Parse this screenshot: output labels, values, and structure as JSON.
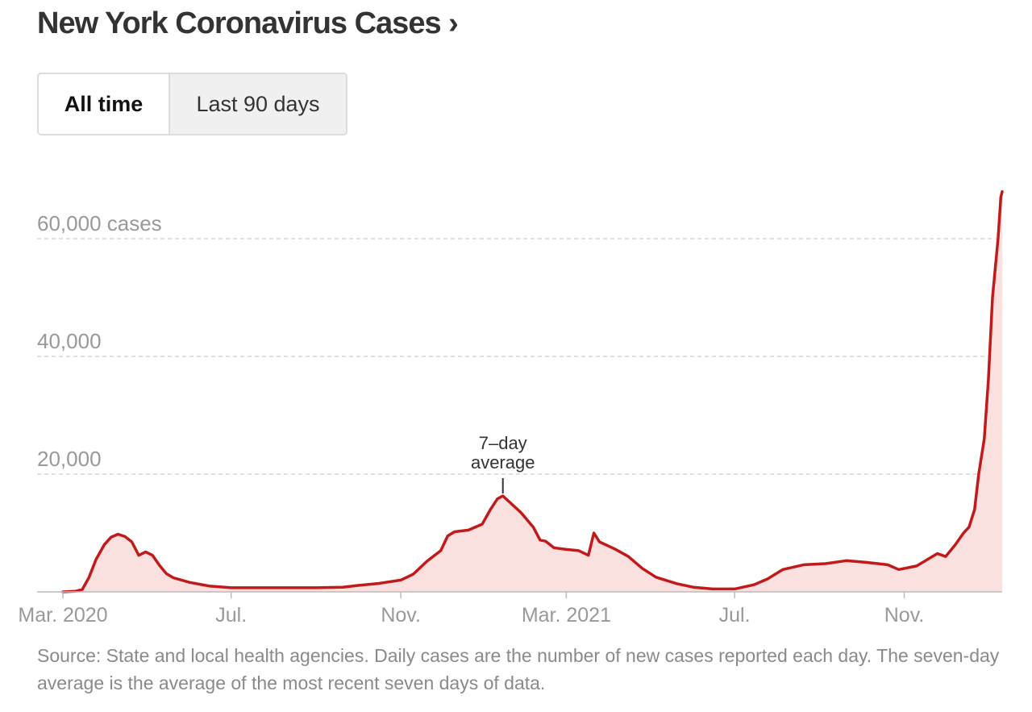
{
  "header": {
    "title": "New York Coronavirus Cases ›"
  },
  "toggle": {
    "options": [
      {
        "label": "All time",
        "selected": true
      },
      {
        "label": "Last 90 days",
        "selected": false
      }
    ]
  },
  "annotation": {
    "line1": "7–day",
    "line2": "average"
  },
  "footer": {
    "source": "Source: State and local health agencies. Daily cases are the number of new cases reported each day. The seven-day average is the average of the most recent seven days of data."
  },
  "colors": {
    "line": "#c21a1a",
    "fill": "#fbe0e0",
    "grid": "#d6d6d6",
    "axis_text": "#999999"
  },
  "chart_data": {
    "type": "area",
    "title": "New York Coronavirus Cases",
    "series_name": "7-day average of daily cases",
    "x_domain": [
      "2020-03-01",
      "2022-01-11"
    ],
    "ylim": [
      0,
      60000
    ],
    "y_ticks": [
      {
        "value": 20000,
        "label": "20,000"
      },
      {
        "value": 40000,
        "label": "40,000"
      },
      {
        "value": 60000,
        "label": "60,000 cases"
      }
    ],
    "x_ticks": [
      {
        "date": "2020-03-01",
        "label": "Mar. 2020"
      },
      {
        "date": "2020-07-01",
        "label": "Jul."
      },
      {
        "date": "2020-11-01",
        "label": "Nov."
      },
      {
        "date": "2021-03-01",
        "label": "Mar. 2021"
      },
      {
        "date": "2021-07-01",
        "label": "Jul."
      },
      {
        "date": "2021-11-01",
        "label": "Nov."
      }
    ],
    "annotation_date": "2021-01-14",
    "points": [
      [
        "2020-03-01",
        0
      ],
      [
        "2020-03-10",
        100
      ],
      [
        "2020-03-15",
        400
      ],
      [
        "2020-03-20",
        2500
      ],
      [
        "2020-03-25",
        5500
      ],
      [
        "2020-03-31",
        8000
      ],
      [
        "2020-04-05",
        9300
      ],
      [
        "2020-04-10",
        9800
      ],
      [
        "2020-04-15",
        9400
      ],
      [
        "2020-04-20",
        8500
      ],
      [
        "2020-04-25",
        6200
      ],
      [
        "2020-04-30",
        6800
      ],
      [
        "2020-05-05",
        6200
      ],
      [
        "2020-05-10",
        4500
      ],
      [
        "2020-05-15",
        3100
      ],
      [
        "2020-05-20",
        2400
      ],
      [
        "2020-06-01",
        1600
      ],
      [
        "2020-06-15",
        1000
      ],
      [
        "2020-07-01",
        700
      ],
      [
        "2020-08-01",
        700
      ],
      [
        "2020-09-01",
        700
      ],
      [
        "2020-09-20",
        800
      ],
      [
        "2020-10-01",
        1100
      ],
      [
        "2020-10-15",
        1400
      ],
      [
        "2020-11-01",
        2000
      ],
      [
        "2020-11-10",
        3000
      ],
      [
        "2020-11-20",
        5200
      ],
      [
        "2020-11-30",
        7000
      ],
      [
        "2020-12-05",
        9500
      ],
      [
        "2020-12-10",
        10200
      ],
      [
        "2020-12-20",
        10500
      ],
      [
        "2020-12-30",
        11500
      ],
      [
        "2021-01-05",
        14000
      ],
      [
        "2021-01-10",
        15800
      ],
      [
        "2021-01-14",
        16300
      ],
      [
        "2021-01-20",
        15000
      ],
      [
        "2021-01-27",
        13500
      ],
      [
        "2021-02-05",
        11000
      ],
      [
        "2021-02-10",
        8800
      ],
      [
        "2021-02-14",
        8600
      ],
      [
        "2021-02-20",
        7500
      ],
      [
        "2021-03-01",
        7200
      ],
      [
        "2021-03-10",
        7000
      ],
      [
        "2021-03-17",
        6200
      ],
      [
        "2021-03-21",
        10000
      ],
      [
        "2021-03-25",
        8500
      ],
      [
        "2021-04-05",
        7300
      ],
      [
        "2021-04-15",
        6000
      ],
      [
        "2021-04-25",
        4000
      ],
      [
        "2021-05-05",
        2500
      ],
      [
        "2021-05-20",
        1400
      ],
      [
        "2021-06-01",
        800
      ],
      [
        "2021-06-15",
        500
      ],
      [
        "2021-07-01",
        500
      ],
      [
        "2021-07-15",
        1200
      ],
      [
        "2021-07-25",
        2200
      ],
      [
        "2021-08-05",
        3800
      ],
      [
        "2021-08-20",
        4600
      ],
      [
        "2021-09-05",
        4800
      ],
      [
        "2021-09-20",
        5300
      ],
      [
        "2021-10-05",
        5000
      ],
      [
        "2021-10-20",
        4600
      ],
      [
        "2021-10-28",
        3800
      ],
      [
        "2021-11-10",
        4400
      ],
      [
        "2021-11-25",
        6500
      ],
      [
        "2021-12-01",
        6000
      ],
      [
        "2021-12-08",
        8000
      ],
      [
        "2021-12-14",
        10000
      ],
      [
        "2021-12-18",
        11000
      ],
      [
        "2021-12-22",
        14000
      ],
      [
        "2021-12-25",
        20000
      ],
      [
        "2021-12-29",
        26000
      ],
      [
        "2022-01-01",
        36000
      ],
      [
        "2022-01-04",
        50000
      ],
      [
        "2022-01-08",
        60000
      ],
      [
        "2022-01-10",
        67000
      ],
      [
        "2022-01-11",
        68000
      ]
    ],
    "xlabel": "",
    "ylabel": ""
  }
}
